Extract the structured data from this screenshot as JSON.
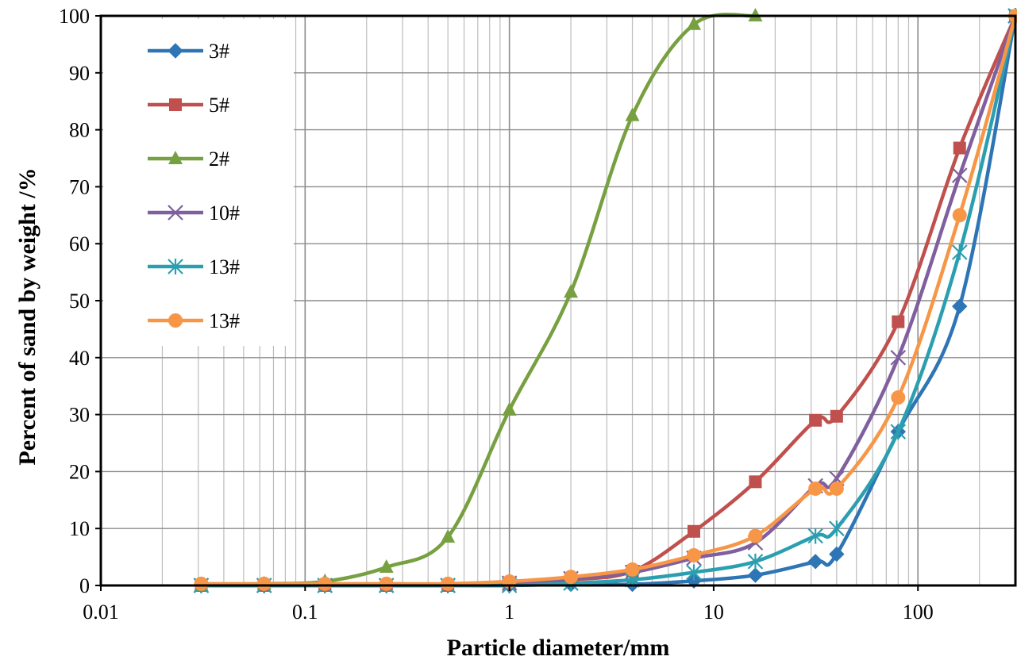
{
  "chart_data": {
    "type": "line",
    "xscale": "log",
    "xlim": [
      0.01,
      300
    ],
    "ylim": [
      0,
      100
    ],
    "grid": true,
    "legend_position": "top-left",
    "xlabel": "Particle diameter/mm",
    "ylabel": "Percent of sand by weight /%",
    "x_ticks": [
      0.01,
      0.1,
      1,
      10,
      100
    ],
    "x_tick_labels": [
      "0.01",
      "0.1",
      "1",
      "10",
      "100"
    ],
    "y_ticks": [
      0,
      10,
      20,
      30,
      40,
      50,
      60,
      70,
      80,
      90,
      100
    ],
    "y_tick_labels": [
      "0",
      "10",
      "20",
      "30",
      "40",
      "50",
      "60",
      "70",
      "80",
      "90",
      "100"
    ],
    "series": [
      {
        "name": "3#",
        "color": "#2e75b6",
        "marker": "diamond",
        "x": [
          0.031,
          0.063,
          0.125,
          0.25,
          0.5,
          1,
          2,
          4,
          8,
          16,
          31.5,
          40,
          80,
          160,
          300
        ],
        "y": [
          0,
          0,
          0,
          0,
          0,
          0,
          0.2,
          0.2,
          0.8,
          1.8,
          4.2,
          5.5,
          27,
          49,
          100
        ]
      },
      {
        "name": "5#",
        "color": "#c0504d",
        "marker": "square",
        "x": [
          0.031,
          0.063,
          0.125,
          0.25,
          0.5,
          1,
          2,
          4,
          8,
          16,
          31.5,
          40,
          80,
          160,
          300
        ],
        "y": [
          0,
          0,
          0,
          0,
          0,
          0.3,
          1,
          2.5,
          9.5,
          18.2,
          29,
          29.7,
          46.3,
          76.8,
          100
        ]
      },
      {
        "name": "2#",
        "color": "#77a041",
        "marker": "triangle",
        "x": [
          0.031,
          0.063,
          0.125,
          0.25,
          0.5,
          1,
          2,
          4,
          8,
          16
        ],
        "y": [
          0,
          0.3,
          0.7,
          3.2,
          8.5,
          30.8,
          51.5,
          82.5,
          98.5,
          100
        ]
      },
      {
        "name": "10#",
        "color": "#7f5f9e",
        "marker": "x",
        "x": [
          0.031,
          0.063,
          0.125,
          0.25,
          0.5,
          1,
          2,
          4,
          8,
          16,
          31.5,
          40,
          80,
          160,
          300
        ],
        "y": [
          0,
          0,
          0,
          0,
          0,
          0.4,
          1.2,
          2.3,
          4.8,
          7.5,
          17.5,
          18.8,
          40,
          72,
          100
        ]
      },
      {
        "name": "13#",
        "color": "#2b9fb0",
        "marker": "star",
        "x": [
          0.031,
          0.063,
          0.125,
          0.25,
          0.5,
          1,
          2,
          4,
          8,
          16,
          31.5,
          40,
          80,
          160,
          300
        ],
        "y": [
          0,
          0,
          0,
          0,
          0,
          0,
          0.4,
          1,
          2.3,
          4.2,
          8.7,
          10,
          27,
          58.5,
          100
        ]
      },
      {
        "name": "13#",
        "color": "#f79646",
        "marker": "circle",
        "x": [
          0.031,
          0.063,
          0.125,
          0.25,
          0.5,
          1,
          2,
          4,
          8,
          16,
          31.5,
          40,
          80,
          160,
          300
        ],
        "y": [
          0.3,
          0.3,
          0.3,
          0.3,
          0.3,
          0.7,
          1.5,
          2.8,
          5.3,
          8.7,
          17,
          17,
          33,
          65,
          100
        ]
      }
    ]
  }
}
